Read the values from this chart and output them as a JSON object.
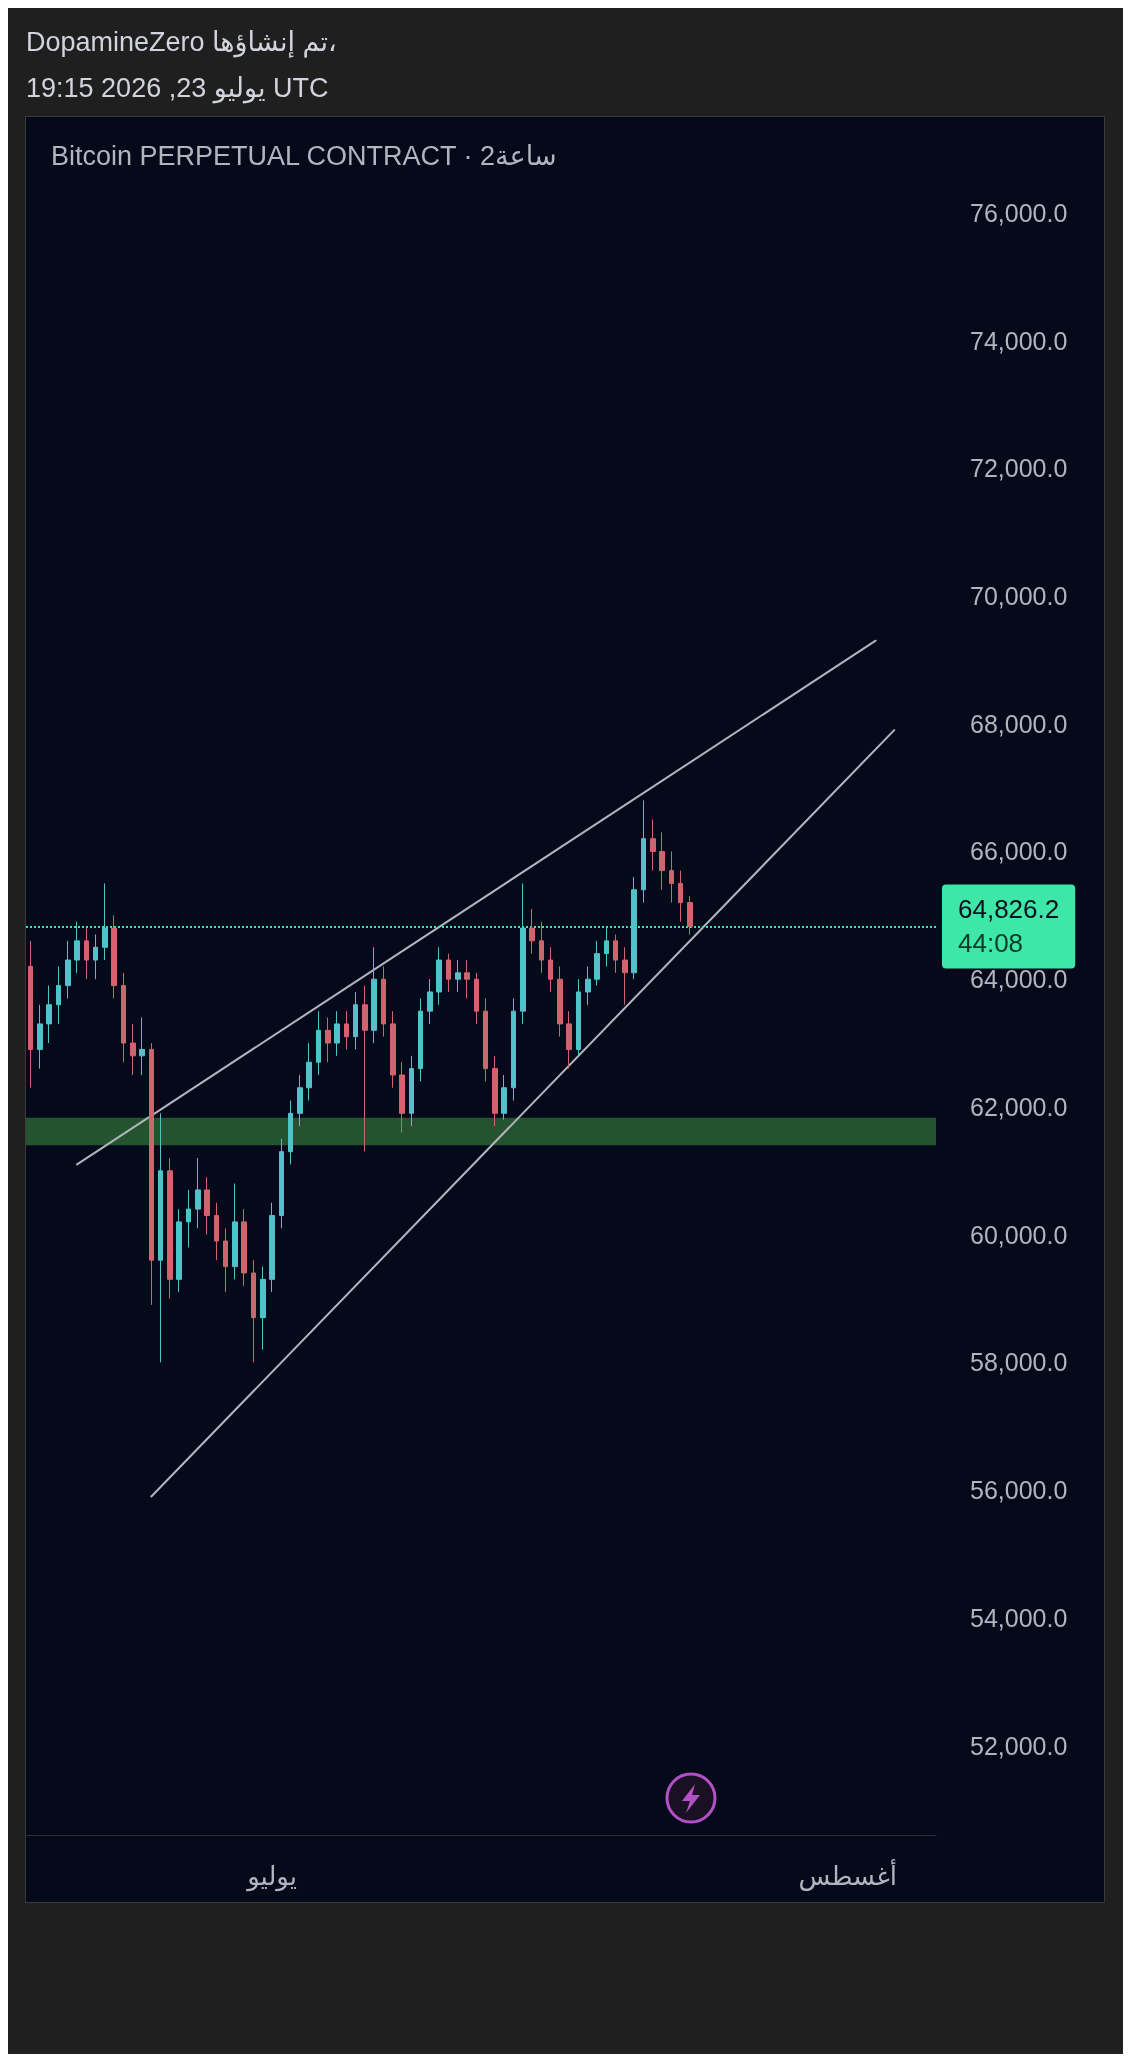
{
  "chart_data": {
    "type": "candlestick",
    "title": "Bitcoin PERPETUAL CONTRACT · 2ساعة",
    "annotations": [
      "DopamineZero تم إنشاؤها،",
      "يوليو 23, 2026 19:15 UTC",
      "44:08"
    ],
    "categories": [
      null,
      null,
      null,
      null,
      null,
      null,
      null,
      null,
      null,
      null,
      null,
      null,
      null,
      null,
      null,
      null,
      null,
      null,
      null,
      null,
      null,
      null,
      null,
      null,
      null,
      null,
      "يوليو",
      null,
      null,
      null,
      null,
      null,
      null,
      null,
      null,
      null,
      null,
      null,
      null,
      null,
      null,
      null,
      null,
      null,
      null,
      null,
      null,
      null,
      null,
      null,
      null,
      null,
      null,
      null,
      null,
      null,
      null,
      null,
      null,
      null,
      null,
      null,
      null,
      null,
      null,
      null,
      null,
      null,
      null,
      null,
      null,
      null,
      null,
      null,
      null,
      null,
      null,
      null,
      null,
      null,
      null,
      null,
      null,
      null,
      null,
      null,
      null,
      null,
      "أغسطس",
      null,
      null,
      null,
      null,
      null,
      null,
      null,
      null,
      null
    ],
    "ohlc": [
      [
        64200,
        64600,
        62300,
        62900
      ],
      [
        62900,
        63600,
        62600,
        63300
      ],
      [
        63300,
        63900,
        63000,
        63600
      ],
      [
        63600,
        64200,
        63300,
        63900
      ],
      [
        63900,
        64600,
        63700,
        64300
      ],
      [
        64300,
        64900,
        64100,
        64600
      ],
      [
        64600,
        64800,
        64000,
        64300
      ],
      [
        64300,
        64700,
        64000,
        64500
      ],
      [
        64500,
        65500,
        64300,
        64800
      ],
      [
        64800,
        65000,
        63700,
        63900
      ],
      [
        63900,
        64100,
        62700,
        63000
      ],
      [
        63000,
        63300,
        62500,
        62800
      ],
      [
        62800,
        63400,
        62500,
        62900
      ],
      [
        62900,
        63000,
        58900,
        59600
      ],
      [
        59600,
        61900,
        58000,
        61000
      ],
      [
        61000,
        61200,
        59000,
        59300
      ],
      [
        59300,
        60400,
        59100,
        60200
      ],
      [
        60200,
        60700,
        59800,
        60400
      ],
      [
        60400,
        61200,
        60100,
        60700
      ],
      [
        60700,
        60900,
        60000,
        60300
      ],
      [
        60300,
        60500,
        59600,
        59900
      ],
      [
        59900,
        60100,
        59100,
        59500
      ],
      [
        59500,
        60800,
        59300,
        60200
      ],
      [
        60200,
        60400,
        59200,
        59400
      ],
      [
        59400,
        59600,
        58000,
        58700
      ],
      [
        58700,
        59500,
        58200,
        59300
      ],
      [
        59300,
        60500,
        59100,
        60300
      ],
      [
        60300,
        61500,
        60100,
        61300
      ],
      [
        61300,
        62100,
        61100,
        61900
      ],
      [
        61900,
        62500,
        61700,
        62300
      ],
      [
        62300,
        63000,
        62100,
        62700
      ],
      [
        62700,
        63500,
        62500,
        63200
      ],
      [
        63200,
        63400,
        62700,
        63000
      ],
      [
        63000,
        63500,
        62800,
        63300
      ],
      [
        63300,
        63500,
        62900,
        63100
      ],
      [
        63100,
        63800,
        62900,
        63600
      ],
      [
        63600,
        63900,
        61300,
        63200
      ],
      [
        63200,
        64500,
        63000,
        64000
      ],
      [
        64000,
        64200,
        63100,
        63300
      ],
      [
        63300,
        63500,
        62300,
        62500
      ],
      [
        62500,
        62700,
        61600,
        61900
      ],
      [
        61900,
        62800,
        61700,
        62600
      ],
      [
        62600,
        63700,
        62400,
        63500
      ],
      [
        63500,
        64000,
        63300,
        63800
      ],
      [
        63800,
        64500,
        63600,
        64300
      ],
      [
        64300,
        64400,
        63800,
        64000
      ],
      [
        64000,
        64300,
        63800,
        64100
      ],
      [
        64100,
        64300,
        63700,
        64000
      ],
      [
        64000,
        64100,
        63300,
        63500
      ],
      [
        63500,
        63700,
        62400,
        62600
      ],
      [
        62600,
        62800,
        61700,
        61900
      ],
      [
        61900,
        62500,
        61800,
        62300
      ],
      [
        62300,
        63700,
        62100,
        63500
      ],
      [
        63500,
        65500,
        63300,
        64800
      ],
      [
        64800,
        65100,
        64400,
        64600
      ],
      [
        64600,
        64900,
        64100,
        64300
      ],
      [
        64300,
        64500,
        63800,
        64000
      ],
      [
        64000,
        64200,
        63100,
        63300
      ],
      [
        63300,
        63500,
        62600,
        62900
      ],
      [
        62900,
        64000,
        62800,
        63800
      ],
      [
        63800,
        64200,
        63600,
        64000
      ],
      [
        64000,
        64600,
        63900,
        64400
      ],
      [
        64400,
        64800,
        64200,
        64600
      ],
      [
        64600,
        64700,
        64100,
        64300
      ],
      [
        64300,
        64500,
        63600,
        64100
      ],
      [
        64100,
        65600,
        64000,
        65400
      ],
      [
        65400,
        66800,
        65200,
        66200
      ],
      [
        66200,
        66500,
        65700,
        66000
      ],
      [
        66000,
        66300,
        65400,
        65700
      ],
      [
        65700,
        66000,
        65200,
        65500
      ],
      [
        65500,
        65700,
        64900,
        65200
      ],
      [
        65200,
        65300,
        64700,
        64826.2
      ],
      null,
      null,
      null,
      null,
      null,
      null,
      null,
      null,
      null,
      null,
      null,
      null,
      null,
      null,
      null,
      null,
      null,
      null,
      null,
      null,
      null,
      null,
      null,
      null,
      null,
      null
    ],
    "series": [
      {
        "type": "line",
        "color": "#b2b5be",
        "values": [
          null,
          null,
          null,
          null,
          null,
          61100,
          null,
          null,
          null,
          null,
          null,
          null,
          null,
          null,
          null,
          null,
          null,
          null,
          null,
          null,
          null,
          null,
          null,
          null,
          null,
          null,
          null,
          null,
          null,
          null,
          null,
          null,
          null,
          null,
          null,
          null,
          null,
          null,
          null,
          null,
          null,
          null,
          null,
          null,
          null,
          null,
          null,
          null,
          null,
          null,
          null,
          null,
          null,
          null,
          null,
          null,
          null,
          null,
          null,
          null,
          null,
          null,
          null,
          null,
          null,
          null,
          null,
          null,
          null,
          null,
          null,
          null,
          null,
          null,
          null,
          null,
          null,
          null,
          null,
          null,
          null,
          null,
          null,
          null,
          null,
          null,
          null,
          null,
          null,
          null,
          null,
          69300,
          null,
          null,
          null,
          null,
          null,
          null
        ]
      },
      {
        "type": "line",
        "color": "#b2b5be",
        "values": [
          null,
          null,
          null,
          null,
          null,
          null,
          null,
          null,
          null,
          null,
          null,
          null,
          null,
          55900,
          null,
          null,
          null,
          null,
          null,
          null,
          null,
          null,
          null,
          null,
          null,
          null,
          null,
          null,
          null,
          null,
          null,
          null,
          null,
          null,
          null,
          null,
          null,
          null,
          null,
          null,
          null,
          null,
          null,
          null,
          null,
          null,
          null,
          null,
          null,
          null,
          null,
          null,
          null,
          null,
          null,
          null,
          null,
          null,
          null,
          null,
          null,
          null,
          null,
          null,
          null,
          null,
          null,
          null,
          null,
          null,
          null,
          null,
          null,
          null,
          null,
          null,
          null,
          null,
          null,
          null,
          null,
          null,
          null,
          null,
          null,
          null,
          null,
          null,
          null,
          null,
          null,
          null,
          null,
          67900,
          null,
          null,
          null,
          null
        ]
      }
    ],
    "marker": "none",
    "ref_lines": [
      {
        "axis": "y",
        "value": 64826.2,
        "label": "64,826.2",
        "color": "#3ee6a8",
        "line_style": "dotted"
      }
    ],
    "bands": [
      {
        "axis": "y",
        "from": 61400,
        "to": 61830,
        "color": "#24532f"
      }
    ],
    "ylim": [
      50600,
      77500
    ],
    "yticks": [
      {
        "value": 52000,
        "label": "52,000.0"
      },
      {
        "value": 54000,
        "label": "54,000.0"
      },
      {
        "value": 56000,
        "label": "56,000.0"
      },
      {
        "value": 58000,
        "label": "58,000.0"
      },
      {
        "value": 60000,
        "label": "60,000.0"
      },
      {
        "value": 62000,
        "label": "62,000.0"
      },
      {
        "value": 64000,
        "label": "64,000.0"
      },
      {
        "value": 66000,
        "label": "66,000.0"
      },
      {
        "value": 68000,
        "label": "68,000.0"
      },
      {
        "value": 70000,
        "label": "70,000.0"
      },
      {
        "value": 72000,
        "label": "72,000.0"
      },
      {
        "value": 74000,
        "label": "74,000.0"
      },
      {
        "value": 76000,
        "label": "76,000.0"
      }
    ],
    "grid": false
  }
}
